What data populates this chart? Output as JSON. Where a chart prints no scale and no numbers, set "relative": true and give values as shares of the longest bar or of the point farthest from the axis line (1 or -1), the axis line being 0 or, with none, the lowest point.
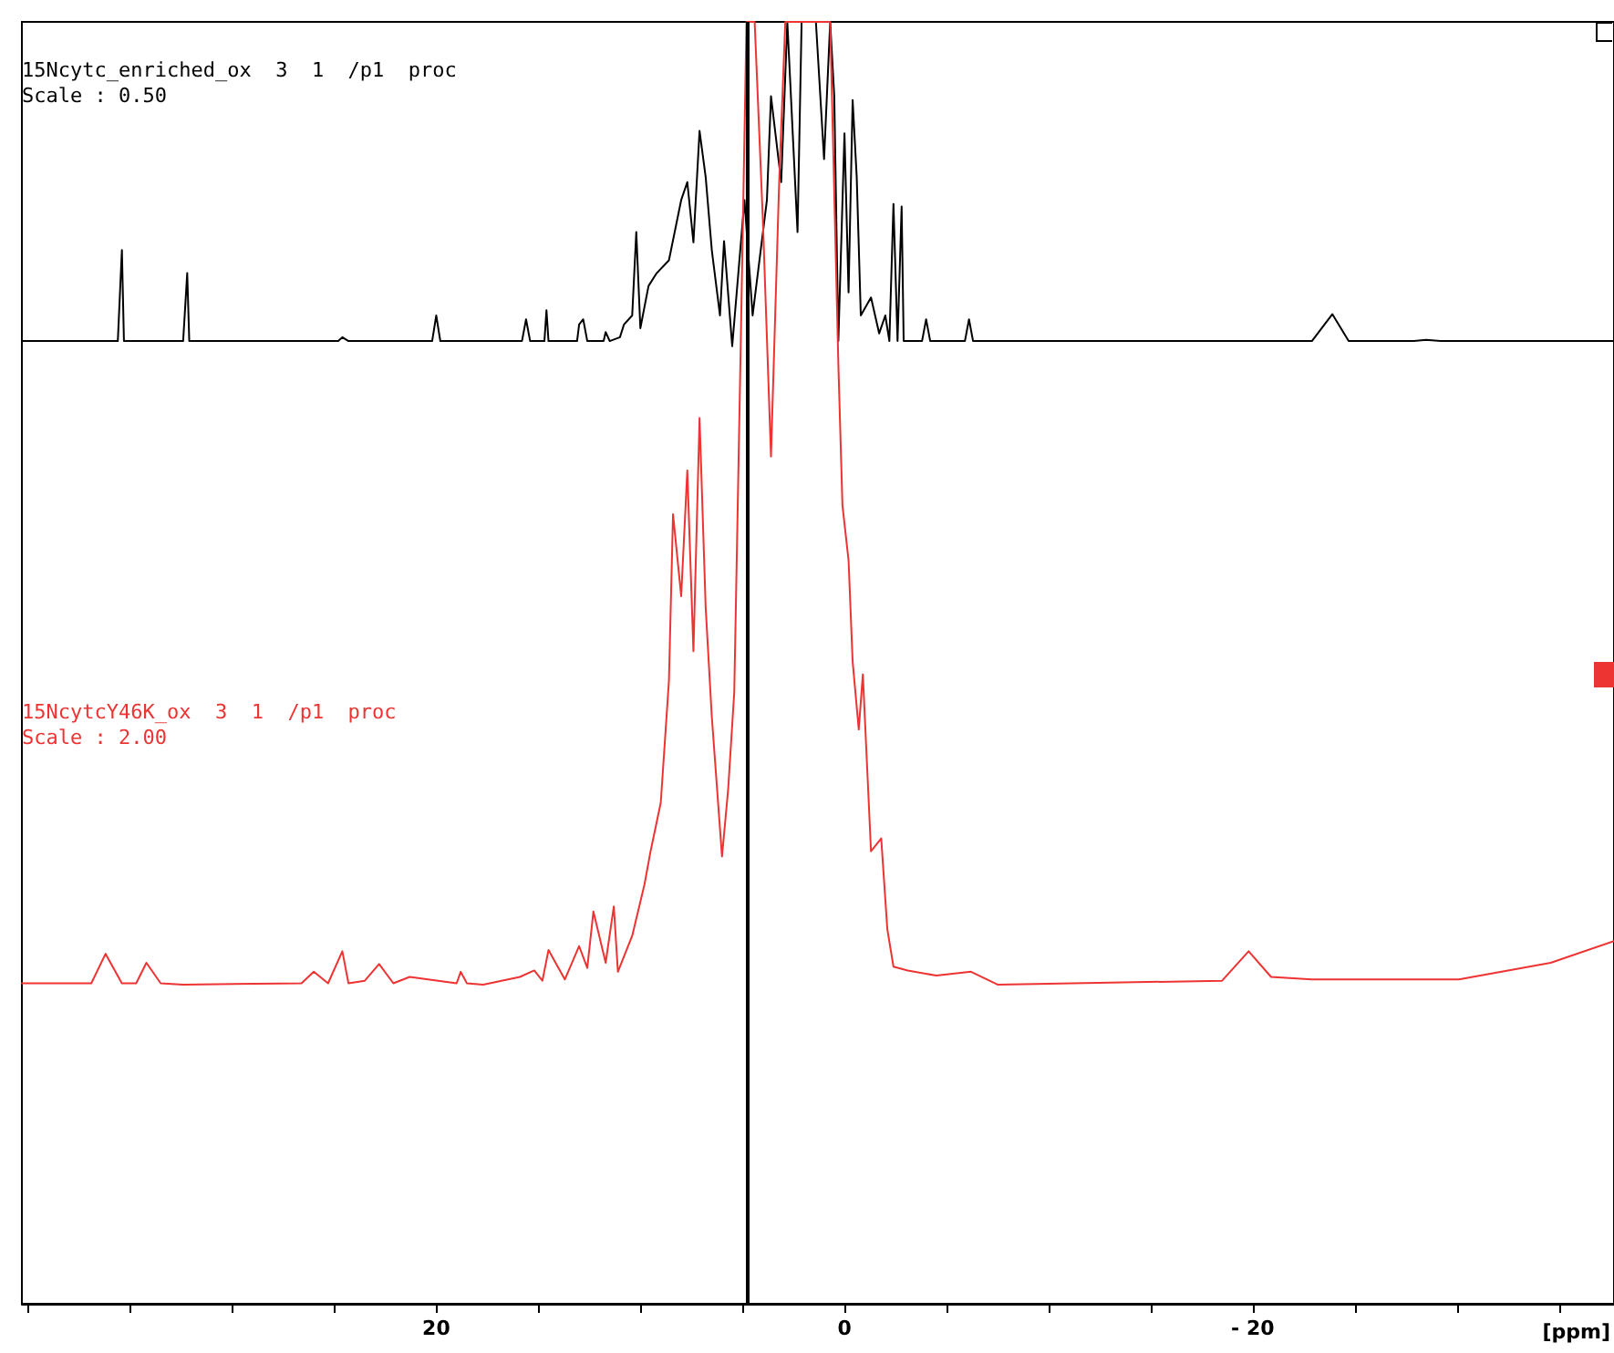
{
  "chart_data": {
    "type": "line",
    "relative": true,
    "xlabel": "[ppm]",
    "xlim": [
      40.3,
      -37.7
    ],
    "xticks": [
      {
        "value": 40,
        "label": null
      },
      {
        "value": 35,
        "label": null
      },
      {
        "value": 30,
        "label": null
      },
      {
        "value": 25,
        "label": null
      },
      20,
      {
        "value": 15,
        "label": null
      },
      {
        "value": 10,
        "label": null
      },
      {
        "value": 5,
        "label": null
      },
      0,
      {
        "value": -5,
        "label": null
      },
      {
        "value": -10,
        "label": null
      },
      {
        "value": -15,
        "label": null
      },
      {
        "value": -20,
        "label": "- 20"
      },
      {
        "value": -25,
        "label": null
      },
      {
        "value": -30,
        "label": null
      },
      {
        "value": -35,
        "label": null
      }
    ],
    "annotations": [
      "Scale : 0.50",
      "Scale : 2.00"
    ],
    "ref_lines": [
      {
        "axis": "x",
        "value": 4.8,
        "label": null,
        "color": "#000000"
      }
    ],
    "legend": false,
    "marker": "none",
    "line_style": "solid",
    "grid": false,
    "series": [
      {
        "name": "15Ncytc_enriched_ox  3  1  /p1  proc",
        "color": "#000000",
        "x": [
          40.3,
          35.6,
          35.4,
          35.3,
          32.4,
          32.2,
          32.1,
          24.8,
          24.6,
          24.3,
          20.2,
          20.0,
          19.8,
          17.1,
          15.8,
          15.6,
          15.4,
          14.7,
          14.6,
          14.5,
          13.1,
          13.0,
          12.8,
          12.6,
          11.8,
          11.7,
          11.5,
          11.0,
          10.8,
          10.4,
          10.2,
          10.0,
          9.6,
          9.2,
          8.6,
          8.0,
          7.7,
          7.4,
          7.1,
          6.8,
          6.5,
          6.1,
          5.9,
          5.5,
          4.9,
          4.5,
          3.8,
          3.6,
          3.1,
          2.8,
          2.3,
          2.1,
          1.4,
          1.0,
          0.7,
          0.5,
          0.3,
          0.0,
          -0.2,
          -0.4,
          -0.6,
          -0.8,
          -1.3,
          -1.7,
          -2.0,
          -2.2,
          -2.4,
          -2.6,
          -2.8,
          -2.9,
          -3.8,
          -4.0,
          -4.2,
          -5.9,
          -6.1,
          -6.3,
          -22.9,
          -23.9,
          -24.7,
          -27.9,
          -28.5,
          -29.2,
          -37.7
        ],
        "values": [
          0.751,
          0.751,
          0.822,
          0.751,
          0.751,
          0.804,
          0.751,
          0.751,
          0.754,
          0.751,
          0.751,
          0.771,
          0.751,
          0.751,
          0.751,
          0.768,
          0.751,
          0.751,
          0.775,
          0.751,
          0.751,
          0.764,
          0.768,
          0.751,
          0.751,
          0.758,
          0.751,
          0.754,
          0.764,
          0.771,
          0.836,
          0.761,
          0.794,
          0.804,
          0.814,
          0.861,
          0.875,
          0.828,
          0.915,
          0.879,
          0.822,
          0.771,
          0.829,
          0.747,
          0.861,
          0.771,
          0.861,
          0.942,
          0.875,
          1,
          0.836,
          1,
          1,
          0.893,
          1,
          0.942,
          0.751,
          0.913,
          0.789,
          0.939,
          0.879,
          0.771,
          0.785,
          0.757,
          0.771,
          0.751,
          0.858,
          0.751,
          0.856,
          0.751,
          0.751,
          0.768,
          0.751,
          0.751,
          0.768,
          0.751,
          0.751,
          0.772,
          0.751,
          0.751,
          0.752,
          0.751,
          0.751
        ]
      },
      {
        "name": "15NcytcY46K_ox  3  1  /p1  proc",
        "color": "#ee3333",
        "x": [
          40.3,
          36.9,
          36.2,
          35.4,
          34.7,
          34.2,
          33.5,
          32.4,
          26.6,
          26.0,
          25.3,
          24.6,
          24.3,
          23.5,
          22.8,
          22.1,
          21.3,
          19.0,
          18.8,
          18.5,
          17.7,
          15.9,
          15.2,
          14.8,
          14.5,
          13.7,
          13.0,
          12.6,
          12.3,
          11.7,
          11.3,
          11.1,
          10.4,
          9.8,
          9.5,
          9.0,
          8.6,
          8.4,
          8.0,
          7.7,
          7.4,
          7.1,
          6.8,
          6.5,
          6.0,
          5.7,
          5.4,
          5.1,
          4.8,
          4.4,
          4.0,
          3.6,
          3.2,
          2.9,
          0.7,
          0.3,
          0.1,
          -0.2,
          -0.4,
          -0.7,
          -0.9,
          -1.3,
          -1.8,
          -2.1,
          -2.4,
          -3.1,
          -4.5,
          -6.2,
          -7.5,
          -18.5,
          -19.8,
          -20.9,
          -22.9,
          -30.1,
          -34.6,
          -37.7
        ],
        "values": [
          0.25,
          0.25,
          0.273,
          0.25,
          0.25,
          0.266,
          0.25,
          0.249,
          0.25,
          0.259,
          0.25,
          0.275,
          0.25,
          0.252,
          0.265,
          0.25,
          0.255,
          0.25,
          0.259,
          0.25,
          0.249,
          0.255,
          0.26,
          0.252,
          0.276,
          0.253,
          0.279,
          0.262,
          0.306,
          0.266,
          0.31,
          0.259,
          0.287,
          0.327,
          0.353,
          0.391,
          0.486,
          0.616,
          0.552,
          0.65,
          0.509,
          0.691,
          0.543,
          0.458,
          0.349,
          0.401,
          0.477,
          0.733,
          1,
          1,
          0.846,
          0.661,
          0.875,
          1,
          1,
          0.733,
          0.623,
          0.58,
          0.501,
          0.448,
          0.491,
          0.353,
          0.363,
          0.292,
          0.263,
          0.26,
          0.256,
          0.259,
          0.249,
          0.252,
          0.275,
          0.255,
          0.253,
          0.253,
          0.266,
          0.283
        ]
      }
    ]
  }
}
